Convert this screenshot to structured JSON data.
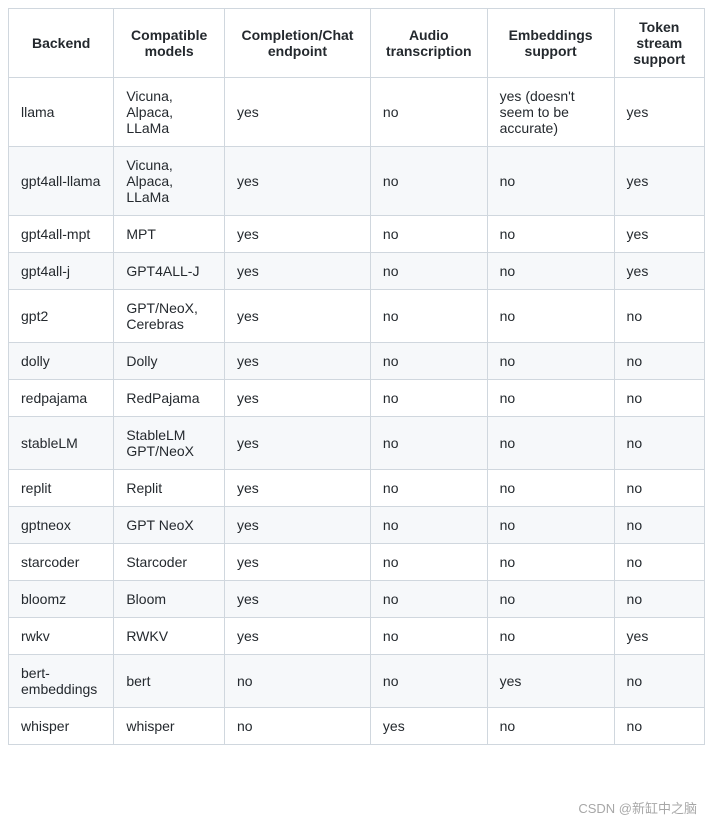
{
  "table": {
    "columns": [
      "Backend",
      "Compatible models",
      "Completion/Chat endpoint",
      "Audio transcription",
      "Embeddings support",
      "Token stream support"
    ],
    "column_align": [
      "left",
      "left",
      "left",
      "left",
      "left",
      "left"
    ],
    "header_fontsize": 14,
    "cell_fontsize": 14,
    "border_color": "#d0d7de",
    "row_stripe_color": "#f6f8fa",
    "background_color": "#ffffff",
    "text_color": "#24292e",
    "rows": [
      [
        "llama",
        "Vicuna, Alpaca, LLaMa",
        "yes",
        "no",
        "yes (doesn't seem to be accurate)",
        "yes"
      ],
      [
        "gpt4all-llama",
        "Vicuna, Alpaca, LLaMa",
        "yes",
        "no",
        "no",
        "yes"
      ],
      [
        "gpt4all-mpt",
        "MPT",
        "yes",
        "no",
        "no",
        "yes"
      ],
      [
        "gpt4all-j",
        "GPT4ALL-J",
        "yes",
        "no",
        "no",
        "yes"
      ],
      [
        "gpt2",
        "GPT/NeoX, Cerebras",
        "yes",
        "no",
        "no",
        "no"
      ],
      [
        "dolly",
        "Dolly",
        "yes",
        "no",
        "no",
        "no"
      ],
      [
        "redpajama",
        "RedPajama",
        "yes",
        "no",
        "no",
        "no"
      ],
      [
        "stableLM",
        "StableLM GPT/NeoX",
        "yes",
        "no",
        "no",
        "no"
      ],
      [
        "replit",
        "Replit",
        "yes",
        "no",
        "no",
        "no"
      ],
      [
        "gptneox",
        "GPT NeoX",
        "yes",
        "no",
        "no",
        "no"
      ],
      [
        "starcoder",
        "Starcoder",
        "yes",
        "no",
        "no",
        "no"
      ],
      [
        "bloomz",
        "Bloom",
        "yes",
        "no",
        "no",
        "no"
      ],
      [
        "rwkv",
        "RWKV",
        "yes",
        "no",
        "no",
        "yes"
      ],
      [
        "bert-embeddings",
        "bert",
        "no",
        "no",
        "yes",
        "no"
      ],
      [
        "whisper",
        "whisper",
        "no",
        "yes",
        "no",
        "no"
      ]
    ]
  },
  "watermark": "CSDN @新缸中之脑"
}
